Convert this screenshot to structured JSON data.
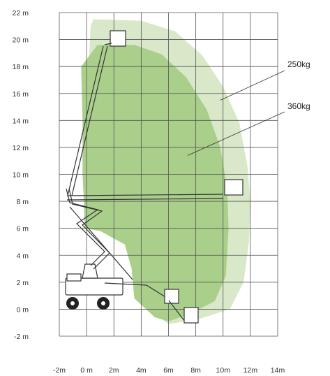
{
  "chart_data": {
    "type": "reach-diagram",
    "x_axis": {
      "min": -2,
      "max": 14,
      "step": 2,
      "tick_labels": [
        "-2m",
        "0 m",
        "2m",
        "4m",
        "6m",
        "8m",
        "10m",
        "12m",
        "14m"
      ]
    },
    "y_axis": {
      "min": -2,
      "max": 22,
      "step": 2,
      "tick_labels": [
        "-2 m",
        "0 m",
        "2 m",
        "4 m",
        "6 m",
        "8 m",
        "10 m",
        "12 m",
        "14 m",
        "16 m",
        "18 m",
        "20 m",
        "22 m"
      ]
    },
    "grid": true,
    "zones": [
      {
        "name": "250kg",
        "color": "#d9e8c8",
        "outline": [
          [
            0.5,
            21.5
          ],
          [
            4,
            21.4
          ],
          [
            6.5,
            20.6
          ],
          [
            8.5,
            18.8
          ],
          [
            10,
            16.5
          ],
          [
            11.2,
            13.8
          ],
          [
            11.8,
            10.5
          ],
          [
            12,
            8
          ],
          [
            11.9,
            5
          ],
          [
            11.5,
            2
          ],
          [
            10.5,
            0
          ],
          [
            8,
            -0.8
          ],
          [
            6,
            -1.1
          ],
          [
            5,
            -0.4
          ],
          [
            3.5,
            0.8
          ],
          [
            3.3,
            3
          ],
          [
            2.8,
            4.8
          ],
          [
            1,
            5.8
          ],
          [
            -0.2,
            6
          ],
          [
            -0.2,
            9.5
          ],
          [
            0.2,
            19
          ],
          [
            0.3,
            21
          ]
        ]
      },
      {
        "name": "360kg",
        "color": "#a9cf8b",
        "outline": [
          [
            -0.4,
            18
          ],
          [
            0.8,
            19.6
          ],
          [
            3.5,
            19.6
          ],
          [
            5.5,
            18.9
          ],
          [
            7.3,
            17.2
          ],
          [
            8.8,
            14.8
          ],
          [
            9.8,
            12
          ],
          [
            10.3,
            9
          ],
          [
            10.4,
            6
          ],
          [
            10.2,
            2.5
          ],
          [
            9.4,
            0.6
          ],
          [
            7.5,
            -0.4
          ],
          [
            6,
            -0.9
          ],
          [
            5,
            -0.6
          ],
          [
            3.5,
            0.8
          ],
          [
            3.3,
            3
          ],
          [
            2.8,
            4.8
          ],
          [
            1,
            5.8
          ],
          [
            -0.1,
            6
          ],
          [
            -0.3,
            10
          ],
          [
            -0.3,
            14
          ]
        ]
      }
    ],
    "annotations": [
      {
        "label": "250kg",
        "target": [
          9.8,
          15.5
        ]
      },
      {
        "label": "360kg",
        "target": [
          7.4,
          11.4
        ]
      }
    ]
  },
  "colors": {
    "outer_zone": "#d9e8c8",
    "inner_zone": "#a9cf8b",
    "grid": "#555555",
    "machine": "#333333"
  }
}
